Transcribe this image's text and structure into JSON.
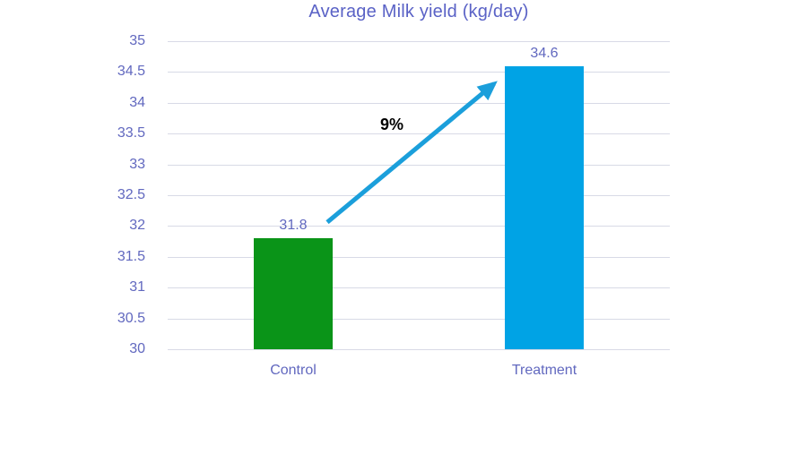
{
  "chart_data": {
    "type": "bar",
    "title": "Average Milk yield (kg/day)",
    "categories": [
      "Control",
      "Treatment"
    ],
    "values": [
      31.8,
      34.6
    ],
    "data_labels": [
      "31.8",
      "34.6"
    ],
    "bar_colors": [
      "#0A9418",
      "#00A3E5"
    ],
    "xlabel": "",
    "ylabel": "",
    "ylim": [
      30,
      35
    ],
    "ytick_step": 0.5,
    "ytick_labels": [
      "35",
      "34.5",
      "34",
      "33.5",
      "33",
      "32.5",
      "32",
      "31.5",
      "31",
      "30.5",
      "30"
    ],
    "grid": true,
    "legend": "none",
    "annotation": {
      "label": "9%",
      "type": "arrow",
      "from_category": "Control",
      "to_category": "Treatment",
      "arrow_color": "#1B9FDB",
      "text_color": "#000000"
    },
    "colors": {
      "title_text": "#5A62C6",
      "axis_text": "#6168BF",
      "gridline": "#D8DAE6",
      "background": "#FFFFFF"
    }
  }
}
